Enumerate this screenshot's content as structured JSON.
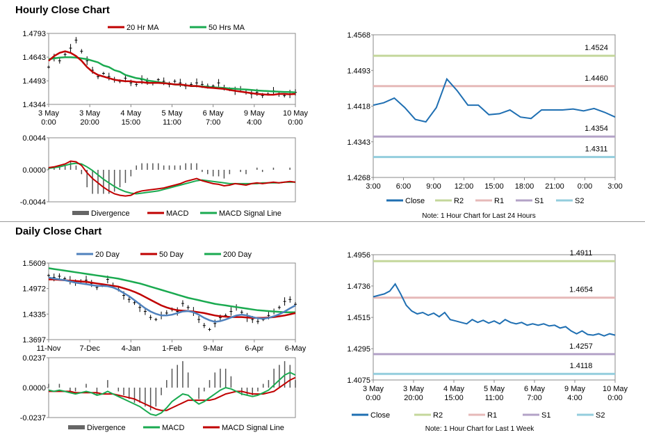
{
  "sections": {
    "hourly_title": "Hourly Close Chart",
    "daily_title": "Daily Close Chart"
  },
  "chart_data": [
    {
      "id": "hourly-price",
      "type": "line",
      "yticks": [
        "1.4793",
        "1.4643",
        "1.4493",
        "1.4344"
      ],
      "ylim": [
        1.4344,
        1.4793
      ],
      "xticks": [
        [
          "3 May",
          "0:00"
        ],
        [
          "3 May",
          "20:00"
        ],
        [
          "4 May",
          "15:00"
        ],
        [
          "5 May",
          "11:00"
        ],
        [
          "6 May",
          "7:00"
        ],
        [
          "9 May",
          "4:00"
        ],
        [
          "10 May",
          "0:00"
        ]
      ],
      "legend": [
        {
          "name": "20 Hr MA",
          "color": "#c00000"
        },
        {
          "name": "50 Hrs MA",
          "color": "#1aaa50"
        }
      ],
      "price_ohlc_approx": [
        1.458,
        1.464,
        1.462,
        1.466,
        1.47,
        1.475,
        1.468,
        1.462,
        1.456,
        1.452,
        1.454,
        1.452,
        1.45,
        1.449,
        1.451,
        1.448,
        1.447,
        1.45,
        1.449,
        1.448,
        1.45,
        1.449,
        1.447,
        1.449,
        1.448,
        1.446,
        1.447,
        1.448,
        1.447,
        1.446,
        1.446,
        1.448,
        1.445,
        1.444,
        1.443,
        1.444,
        1.442,
        1.441,
        1.442,
        1.44,
        1.441,
        1.443,
        1.441,
        1.44,
        1.441,
        1.442
      ],
      "ma20": [
        1.462,
        1.465,
        1.467,
        1.468,
        1.467,
        1.465,
        1.462,
        1.458,
        1.455,
        1.453,
        1.452,
        1.451,
        1.45,
        1.4495,
        1.449,
        1.449,
        1.4485,
        1.4485,
        1.448,
        1.448,
        1.448,
        1.4478,
        1.4475,
        1.447,
        1.447,
        1.4465,
        1.446,
        1.446,
        1.4455,
        1.445,
        1.4448,
        1.4445,
        1.4442,
        1.4435,
        1.443,
        1.4425,
        1.442,
        1.4415,
        1.441,
        1.4408,
        1.4405,
        1.4405,
        1.441,
        1.441,
        1.4408,
        1.441
      ],
      "ma50": [
        1.463,
        1.4635,
        1.464,
        1.4642,
        1.4642,
        1.464,
        1.4635,
        1.463,
        1.462,
        1.461,
        1.459,
        1.458,
        1.456,
        1.455,
        1.453,
        1.452,
        1.451,
        1.4505,
        1.4495,
        1.449,
        1.4485,
        1.448,
        1.4475,
        1.447,
        1.4468,
        1.4465,
        1.446,
        1.446,
        1.4458,
        1.4455,
        1.4452,
        1.445,
        1.4448,
        1.4445,
        1.4443,
        1.444,
        1.4438,
        1.4435,
        1.4432,
        1.443,
        1.4428,
        1.4426,
        1.4424,
        1.4423,
        1.4422,
        1.442
      ]
    },
    {
      "id": "hourly-macd",
      "type": "line",
      "yticks": [
        "0.0044",
        "0.0000",
        "-0.0044"
      ],
      "ylim": [
        -0.0044,
        0.0044
      ],
      "legend": [
        {
          "name": "Divergence",
          "color": "#666666"
        },
        {
          "name": "MACD",
          "color": "#c00000"
        },
        {
          "name": "MACD Signal Line",
          "color": "#1aaa50"
        }
      ],
      "macd": [
        0.0003,
        0.0004,
        0.0006,
        0.0008,
        0.0012,
        0.0011,
        0.0006,
        -0.0004,
        -0.0012,
        -0.0018,
        -0.0024,
        -0.0029,
        -0.0033,
        -0.0035,
        -0.0036,
        -0.0035,
        -0.0031,
        -0.0029,
        -0.0028,
        -0.0027,
        -0.0026,
        -0.0025,
        -0.0023,
        -0.0021,
        -0.0019,
        -0.0016,
        -0.0014,
        -0.0012,
        -0.0015,
        -0.0017,
        -0.0019,
        -0.002,
        -0.0022,
        -0.0021,
        -0.0019,
        -0.002,
        -0.0021,
        -0.0019,
        -0.0018,
        -0.0019,
        -0.0018,
        -0.0017,
        -0.0018,
        -0.0017,
        -0.0016,
        -0.0017
      ],
      "signal": [
        0.0002,
        0.0003,
        0.0004,
        0.0006,
        0.0008,
        0.0009,
        0.0008,
        0.0004,
        -0.0001,
        -0.0007,
        -0.0013,
        -0.0018,
        -0.0023,
        -0.0027,
        -0.003,
        -0.0032,
        -0.0033,
        -0.0032,
        -0.0031,
        -0.003,
        -0.0029,
        -0.0027,
        -0.0025,
        -0.0023,
        -0.0021,
        -0.0019,
        -0.0017,
        -0.0015,
        -0.0014,
        -0.0015,
        -0.0016,
        -0.0017,
        -0.0018,
        -0.0019,
        -0.0019,
        -0.0019,
        -0.0019,
        -0.0019,
        -0.0019,
        -0.0018,
        -0.0018,
        -0.0018,
        -0.0018,
        -0.0017,
        -0.0017,
        -0.0017
      ]
    },
    {
      "id": "hourly-close-24h",
      "type": "line",
      "yticks": [
        "1.4568",
        "1.4493",
        "1.4418",
        "1.4343",
        "1.4268"
      ],
      "ylim": [
        1.4268,
        1.4568
      ],
      "xticks": [
        "3:00",
        "6:00",
        "9:00",
        "12:00",
        "15:00",
        "18:00",
        "21:00",
        "0:00",
        "3:00"
      ],
      "levels": [
        {
          "name": "R2",
          "value": 1.4524,
          "label": "1.4524",
          "color": "#c4d79b"
        },
        {
          "name": "R1",
          "value": 1.446,
          "label": "1.4460",
          "color": "#e6b9b8"
        },
        {
          "name": "S1",
          "value": 1.4354,
          "label": "1.4354",
          "color": "#b3a2c7"
        },
        {
          "name": "S2",
          "value": 1.4311,
          "label": "1.4311",
          "color": "#93cddd"
        }
      ],
      "close": [
        1.442,
        1.4425,
        1.4435,
        1.4415,
        1.439,
        1.4385,
        1.4415,
        1.4475,
        1.445,
        1.442,
        1.442,
        1.44,
        1.4402,
        1.441,
        1.4395,
        1.4392,
        1.441,
        1.441,
        1.441,
        1.4412,
        1.4408,
        1.4413,
        1.4405,
        1.4395
      ],
      "legend": [
        "Close",
        "R2",
        "R1",
        "S1",
        "S2"
      ],
      "note": "Note: 1 Hour Chart for Last 24 Hours"
    },
    {
      "id": "daily-price",
      "type": "line",
      "yticks": [
        "1.5609",
        "1.4972",
        "1.4335",
        "1.3697"
      ],
      "ylim": [
        1.3697,
        1.5609
      ],
      "xticks": [
        "11-Nov",
        "7-Dec",
        "4-Jan",
        "1-Feb",
        "9-Mar",
        "6-Apr",
        "6-May"
      ],
      "legend": [
        {
          "name": "20 Day",
          "color": "#4f81bd"
        },
        {
          "name": "50 Day",
          "color": "#c00000"
        },
        {
          "name": "200 Day",
          "color": "#1aaa50"
        }
      ],
      "price_approx": [
        1.53,
        1.525,
        1.528,
        1.522,
        1.518,
        1.512,
        1.515,
        1.518,
        1.51,
        1.5,
        1.505,
        1.52,
        1.505,
        1.495,
        1.48,
        1.47,
        1.462,
        1.45,
        1.44,
        1.425,
        1.42,
        1.43,
        1.436,
        1.445,
        1.44,
        1.46,
        1.45,
        1.44,
        1.42,
        1.405,
        1.395,
        1.41,
        1.425,
        1.43,
        1.44,
        1.45,
        1.438,
        1.425,
        1.42,
        1.415,
        1.42,
        1.43,
        1.44,
        1.45,
        1.465,
        1.47,
        1.458
      ],
      "ma20": [
        1.525,
        1.522,
        1.52,
        1.518,
        1.515,
        1.512,
        1.51,
        1.508,
        1.506,
        1.504,
        1.504,
        1.503,
        1.5,
        1.494,
        1.486,
        1.478,
        1.468,
        1.458,
        1.448,
        1.44,
        1.434,
        1.43,
        1.43,
        1.432,
        1.436,
        1.44,
        1.441,
        1.438,
        1.432,
        1.424,
        1.418,
        1.414,
        1.416,
        1.42,
        1.425,
        1.43,
        1.432,
        1.43,
        1.426,
        1.423,
        1.422,
        1.424,
        1.428,
        1.433,
        1.44,
        1.448,
        1.455
      ],
      "ma50": [
        1.52,
        1.52,
        1.519,
        1.518,
        1.517,
        1.516,
        1.515,
        1.514,
        1.512,
        1.51,
        1.508,
        1.506,
        1.504,
        1.502,
        1.498,
        1.494,
        1.489,
        1.483,
        1.476,
        1.469,
        1.462,
        1.455,
        1.45,
        1.446,
        1.443,
        1.442,
        1.441,
        1.44,
        1.438,
        1.436,
        1.433,
        1.43,
        1.428,
        1.427,
        1.426,
        1.426,
        1.426,
        1.425,
        1.424,
        1.424,
        1.424,
        1.425,
        1.426,
        1.428,
        1.43,
        1.433,
        1.436
      ],
      "ma200": [
        1.548,
        1.546,
        1.544,
        1.542,
        1.54,
        1.538,
        1.536,
        1.534,
        1.532,
        1.53,
        1.528,
        1.526,
        1.524,
        1.522,
        1.519,
        1.516,
        1.513,
        1.51,
        1.506,
        1.502,
        1.498,
        1.494,
        1.49,
        1.486,
        1.482,
        1.478,
        1.474,
        1.471,
        1.468,
        1.465,
        1.462,
        1.459,
        1.457,
        1.455,
        1.453,
        1.451,
        1.449,
        1.447,
        1.445,
        1.443,
        1.442,
        1.441,
        1.44,
        1.439,
        1.438,
        1.438,
        1.438
      ]
    },
    {
      "id": "daily-macd",
      "type": "line",
      "yticks": [
        "0.0237",
        "0.0000",
        "-0.0237"
      ],
      "ylim": [
        -0.0237,
        0.0237
      ],
      "legend": [
        {
          "name": "Divergence",
          "color": "#666666"
        },
        {
          "name": "MACD",
          "color": "#1aaa50"
        },
        {
          "name": "MACD Signal Line",
          "color": "#c00000"
        }
      ],
      "macd": [
        -0.002,
        -0.003,
        -0.002,
        -0.003,
        -0.004,
        -0.005,
        -0.004,
        -0.003,
        -0.004,
        -0.006,
        -0.005,
        -0.003,
        -0.005,
        -0.007,
        -0.009,
        -0.011,
        -0.013,
        -0.015,
        -0.018,
        -0.021,
        -0.022,
        -0.02,
        -0.016,
        -0.011,
        -0.008,
        -0.005,
        -0.006,
        -0.01,
        -0.013,
        -0.011,
        -0.008,
        -0.005,
        -0.002,
        0.0,
        -0.001,
        -0.003,
        -0.005,
        -0.006,
        -0.007,
        -0.006,
        -0.004,
        -0.002,
        0.002,
        0.006,
        0.01,
        0.012,
        0.01
      ],
      "signal": [
        -0.003,
        -0.003,
        -0.003,
        -0.003,
        -0.003,
        -0.004,
        -0.004,
        -0.004,
        -0.004,
        -0.004,
        -0.005,
        -0.005,
        -0.005,
        -0.006,
        -0.007,
        -0.008,
        -0.009,
        -0.011,
        -0.013,
        -0.015,
        -0.017,
        -0.018,
        -0.018,
        -0.016,
        -0.014,
        -0.012,
        -0.01,
        -0.01,
        -0.01,
        -0.01,
        -0.01,
        -0.009,
        -0.007,
        -0.005,
        -0.004,
        -0.003,
        -0.003,
        -0.004,
        -0.005,
        -0.005,
        -0.005,
        -0.004,
        -0.003,
        0.0,
        0.003,
        0.006,
        0.008
      ]
    },
    {
      "id": "daily-close-week",
      "type": "line",
      "yticks": [
        "1.4956",
        "1.4736",
        "1.4515",
        "1.4295",
        "1.4075"
      ],
      "ylim": [
        1.4075,
        1.4956
      ],
      "xticks": [
        [
          "3 May",
          "0:00"
        ],
        [
          "3 May",
          "20:00"
        ],
        [
          "4 May",
          "15:00"
        ],
        [
          "5 May",
          "11:00"
        ],
        [
          "6 May",
          "7:00"
        ],
        [
          "9 May",
          "4:00"
        ],
        [
          "10 May",
          "0:00"
        ]
      ],
      "levels": [
        {
          "name": "R2",
          "value": 1.4911,
          "label": "1.4911",
          "color": "#c4d79b"
        },
        {
          "name": "R1",
          "value": 1.4654,
          "label": "1.4654",
          "color": "#e6b9b8"
        },
        {
          "name": "S1",
          "value": 1.4257,
          "label": "1.4257",
          "color": "#b3a2c7"
        },
        {
          "name": "S2",
          "value": 1.4118,
          "label": "1.4118",
          "color": "#93cddd"
        }
      ],
      "close": [
        1.466,
        1.467,
        1.468,
        1.47,
        1.475,
        1.468,
        1.46,
        1.456,
        1.454,
        1.455,
        1.453,
        1.4545,
        1.452,
        1.455,
        1.45,
        1.449,
        1.448,
        1.447,
        1.45,
        1.448,
        1.4495,
        1.4475,
        1.449,
        1.447,
        1.45,
        1.448,
        1.447,
        1.448,
        1.446,
        1.447,
        1.446,
        1.447,
        1.4455,
        1.446,
        1.444,
        1.445,
        1.442,
        1.44,
        1.442,
        1.4395,
        1.439,
        1.44,
        1.4385,
        1.44,
        1.439
      ],
      "legend": [
        "Close",
        "R2",
        "R1",
        "S1",
        "S2"
      ],
      "note": "Note: 1 Hour Chart for Last 1 Week"
    }
  ]
}
